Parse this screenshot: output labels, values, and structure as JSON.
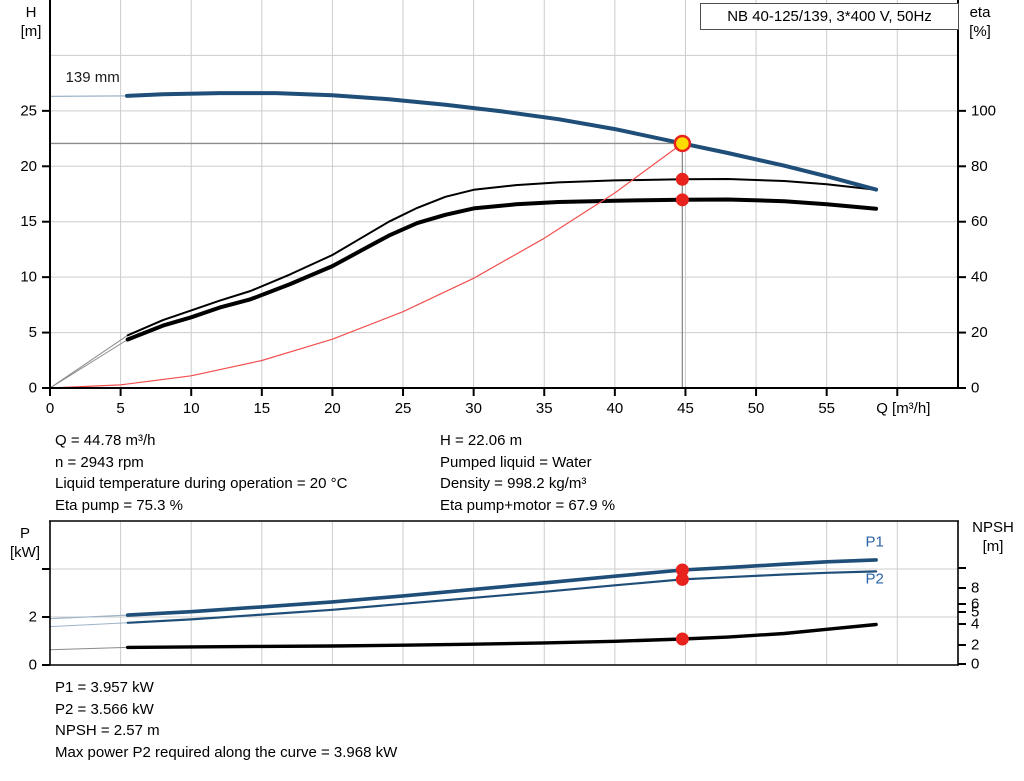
{
  "title_box": {
    "text": "NB 40-125/139, 3*400 V, 50Hz"
  },
  "colors": {
    "curve_blue": "#1f4e79",
    "label_blue": "#2a64a8",
    "red": "#e8231e",
    "red_curve": "#f25050",
    "yellow": "#ffdc00",
    "grid": "#cccccc",
    "duty_line": "#8c8c8c",
    "axis": "#000000",
    "ext_gray": "#8a8a8a",
    "ext_blue": "#9db3c8"
  },
  "axes_headers": {
    "top_left": {
      "line1": "H",
      "line2": "[m]"
    },
    "top_right": {
      "line1": "eta",
      "line2": "[%]"
    },
    "bottom_left": {
      "line1": "P",
      "line2": "[kW]"
    },
    "bottom_right": {
      "line1": "NPSH",
      "line2": "[m]"
    }
  },
  "info_top": {
    "left_lines": [
      "Q = 44.78 m³/h",
      "n = 2943 rpm",
      "Liquid temperature during operation = 20 °C",
      "Eta pump = 75.3 %"
    ],
    "right_lines": [
      "H = 22.06 m",
      "Pumped liquid = Water",
      "Density = 998.2 kg/m³",
      "Eta pump+motor = 67.9 %"
    ]
  },
  "info_bottom": {
    "lines": [
      "P1 = 3.957 kW",
      "P2 = 3.566 kW",
      "NPSH = 2.57 m",
      "Max power P2 required along the curve = 3.968 kW"
    ]
  },
  "chart_data": [
    {
      "type": "line",
      "title": "NB 40-125/139, 3*400 V, 50Hz",
      "xlabel": "Q [m³/h]",
      "x_range": [
        0,
        64.3
      ],
      "x_tick_step": 5,
      "x_tick_labels": [
        "0",
        "5",
        "10",
        "15",
        "20",
        "25",
        "30",
        "35",
        "40",
        "45",
        "50",
        "55"
      ],
      "y_left": {
        "label": "H [m]",
        "range": [
          0,
          35
        ],
        "ticks": [
          0,
          5,
          10,
          15,
          20,
          25
        ],
        "grid": [
          5,
          10,
          15,
          20,
          25,
          30
        ]
      },
      "y_right": {
        "label": "eta [%]",
        "range": [
          0,
          140
        ],
        "ticks": [
          0,
          20,
          40,
          60,
          80,
          100
        ]
      },
      "series": [
        {
          "name": "head-curve-extension",
          "axis": "left",
          "color": "ext_blue",
          "width": 1.3,
          "points": [
            [
              0,
              26.3
            ],
            [
              5.45,
              26.35
            ]
          ]
        },
        {
          "name": "eta-pump-extension",
          "axis": "right",
          "color": "ext_gray",
          "width": 1,
          "points": [
            [
              0,
              0
            ],
            [
              5.5,
              19
            ]
          ]
        },
        {
          "name": "eta-pump-motor-extension",
          "axis": "right",
          "color": "ext_gray",
          "width": 1,
          "points": [
            [
              0,
              0
            ],
            [
              5.5,
              17.5
            ]
          ]
        },
        {
          "name": "eta-pump-curve",
          "axis": "right",
          "color": "axis",
          "width": 2,
          "points": [
            [
              5.5,
              19
            ],
            [
              8,
              24.5
            ],
            [
              10,
              28
            ],
            [
              12,
              31.5
            ],
            [
              14.2,
              35
            ],
            [
              17,
              41
            ],
            [
              20,
              48
            ],
            [
              22,
              54
            ],
            [
              24,
              60
            ],
            [
              26,
              65
            ],
            [
              28,
              69
            ],
            [
              30,
              71.5
            ],
            [
              33,
              73.2
            ],
            [
              36,
              74.2
            ],
            [
              40,
              74.9
            ],
            [
              44.78,
              75.3
            ],
            [
              48,
              75.4
            ],
            [
              52,
              74.7
            ],
            [
              55,
              73.5
            ],
            [
              58.5,
              71.5
            ]
          ]
        },
        {
          "name": "eta-pump-motor-curve",
          "axis": "right",
          "color": "axis",
          "width": 4,
          "points": [
            [
              5.5,
              17.5
            ],
            [
              8,
              22.5
            ],
            [
              10,
              25.5
            ],
            [
              12,
              29
            ],
            [
              14.2,
              32
            ],
            [
              17,
              37.5
            ],
            [
              20,
              44
            ],
            [
              22,
              49.5
            ],
            [
              24,
              55
            ],
            [
              26,
              59.5
            ],
            [
              28,
              62.5
            ],
            [
              30,
              64.8
            ],
            [
              33,
              66.3
            ],
            [
              36,
              67.1
            ],
            [
              40,
              67.6
            ],
            [
              44.78,
              67.9
            ],
            [
              48,
              68
            ],
            [
              52,
              67.4
            ],
            [
              55,
              66.3
            ],
            [
              58.5,
              64.7
            ]
          ]
        },
        {
          "name": "system-curve",
          "axis": "left",
          "color": "red_curve",
          "width": 1.2,
          "points": [
            [
              0,
              0
            ],
            [
              5,
              0.28
            ],
            [
              10,
              1.1
            ],
            [
              15,
              2.48
            ],
            [
              20,
              4.4
            ],
            [
              25,
              6.88
            ],
            [
              30,
              9.9
            ],
            [
              35,
              13.5
            ],
            [
              40,
              17.6
            ],
            [
              44.78,
              22.06
            ]
          ]
        },
        {
          "name": "head-curve-139mm",
          "axis": "left",
          "color": "curve_blue",
          "width": 4,
          "points": [
            [
              5.45,
              26.35
            ],
            [
              8,
              26.5
            ],
            [
              12,
              26.6
            ],
            [
              16,
              26.6
            ],
            [
              20,
              26.4
            ],
            [
              24,
              26.05
            ],
            [
              28,
              25.55
            ],
            [
              32,
              24.95
            ],
            [
              36,
              24.25
            ],
            [
              40,
              23.35
            ],
            [
              44.78,
              22.06
            ],
            [
              48,
              21.2
            ],
            [
              52,
              20.05
            ],
            [
              55,
              19.1
            ],
            [
              58.5,
              17.9
            ]
          ]
        }
      ],
      "duty_point": {
        "q": 44.78,
        "h": 22.06,
        "eta_pump": 75.3,
        "eta_pump_motor": 67.9
      },
      "annotations": [
        {
          "text": "139 mm",
          "q": 1.1,
          "v": 28.0,
          "axis": "left",
          "color": "#1a1a1a"
        }
      ]
    },
    {
      "type": "line",
      "xlabel": "",
      "x_range": [
        0,
        64.3
      ],
      "x_tick_step": 5,
      "x_tick_labels": [],
      "y_left": {
        "label": "P [kW]",
        "range": [
          0,
          6
        ],
        "ticks": [
          0,
          2
        ],
        "extra_ticks": [
          4
        ],
        "grid": [
          2,
          4
        ]
      },
      "y_right": {
        "label": "NPSH [m]",
        "ticks": [
          0,
          2,
          4,
          5,
          6,
          8
        ],
        "extra_ticks": [
          10
        ]
      },
      "series": [
        {
          "name": "p1-extension",
          "axis": "left",
          "color": "ext_blue",
          "width": 1.2,
          "points": [
            [
              0,
              1.93
            ],
            [
              5.5,
              2.08
            ]
          ]
        },
        {
          "name": "p2-extension",
          "axis": "left",
          "color": "ext_blue",
          "width": 1,
          "points": [
            [
              0,
              1.6
            ],
            [
              5.5,
              1.76
            ]
          ]
        },
        {
          "name": "npsh-extension",
          "axis": "npsh",
          "color": "ext_gray",
          "width": 1,
          "points": [
            [
              0,
              1.5
            ],
            [
              5.5,
              1.75
            ]
          ]
        },
        {
          "name": "p1-curve",
          "axis": "left",
          "color": "curve_blue",
          "width": 3.6,
          "points": [
            [
              5.5,
              2.08
            ],
            [
              10,
              2.22
            ],
            [
              15,
              2.42
            ],
            [
              20,
              2.63
            ],
            [
              25,
              2.88
            ],
            [
              30,
              3.15
            ],
            [
              35,
              3.42
            ],
            [
              40,
              3.7
            ],
            [
              44.78,
              3.957
            ],
            [
              48,
              4.06
            ],
            [
              52,
              4.2
            ],
            [
              55,
              4.3
            ],
            [
              58.5,
              4.38
            ]
          ]
        },
        {
          "name": "p2-curve",
          "axis": "left",
          "color": "curve_blue",
          "width": 2.2,
          "points": [
            [
              5.5,
              1.76
            ],
            [
              10,
              1.9
            ],
            [
              15,
              2.1
            ],
            [
              20,
              2.3
            ],
            [
              25,
              2.55
            ],
            [
              30,
              2.8
            ],
            [
              35,
              3.05
            ],
            [
              40,
              3.32
            ],
            [
              44.78,
              3.566
            ],
            [
              48,
              3.66
            ],
            [
              52,
              3.77
            ],
            [
              55,
              3.84
            ],
            [
              58.5,
              3.9
            ]
          ]
        },
        {
          "name": "npsh-curve",
          "axis": "npsh",
          "color": "axis",
          "width": 3.4,
          "points": [
            [
              5.5,
              1.75
            ],
            [
              10,
              1.8
            ],
            [
              15,
              1.85
            ],
            [
              20,
              1.9
            ],
            [
              25,
              1.98
            ],
            [
              30,
              2.08
            ],
            [
              35,
              2.2
            ],
            [
              40,
              2.35
            ],
            [
              44.78,
              2.57
            ],
            [
              48,
              2.75
            ],
            [
              52,
              3.1
            ],
            [
              55,
              3.5
            ],
            [
              58.5,
              3.95
            ]
          ]
        }
      ],
      "duty_point": {
        "q": 44.78,
        "p1": 3.957,
        "p2": 3.566,
        "npsh": 2.57
      },
      "annotations": [
        {
          "text": "P1",
          "q": 57.75,
          "v": 5.12,
          "axis": "left",
          "color": "label_blue"
        },
        {
          "text": "P2",
          "q": 57.75,
          "v": 3.58,
          "axis": "left",
          "color": "label_blue"
        }
      ]
    }
  ]
}
